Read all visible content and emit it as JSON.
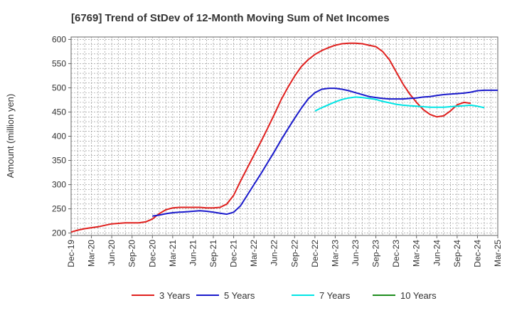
{
  "chart_data": {
    "type": "line",
    "title": "[6769]  Trend of StDev of 12-Month Moving Sum of Net Incomes",
    "ylabel": "Amount (million yen)",
    "xlabel": "",
    "ylim": [
      195,
      605
    ],
    "yticks": [
      200,
      250,
      300,
      350,
      400,
      450,
      500,
      550,
      600
    ],
    "xticks": [
      "Dec-19",
      "Mar-20",
      "Jun-20",
      "Sep-20",
      "Dec-20",
      "Mar-21",
      "Jun-21",
      "Sep-21",
      "Dec-21",
      "Mar-22",
      "Jun-22",
      "Sep-22",
      "Dec-22",
      "Mar-23",
      "Jun-23",
      "Sep-23",
      "Dec-23",
      "Mar-24",
      "Jun-24",
      "Sep-24",
      "Dec-24",
      "Mar-25"
    ],
    "grid": true,
    "legend_position": "bottom",
    "series": [
      {
        "name": "3 Years",
        "color": "#e0201e",
        "start_index": 0,
        "values": [
          202,
          206,
          209,
          211,
          213,
          216,
          219,
          220,
          221,
          221,
          221,
          223,
          229,
          240,
          248,
          252,
          253,
          253,
          253,
          253,
          252,
          252,
          253,
          260,
          278,
          307,
          334,
          361,
          388,
          416,
          445,
          475,
          501,
          524,
          544,
          558,
          569,
          577,
          583,
          588,
          591,
          592,
          592,
          591,
          588,
          585,
          575,
          558,
          533,
          508,
          487,
          470,
          455,
          445,
          440,
          442,
          452,
          465,
          470,
          468
        ]
      },
      {
        "name": "5 Years",
        "color": "#1a1acc",
        "start_index": 12,
        "values": [
          235,
          237,
          240,
          242,
          243,
          244,
          245,
          246,
          245,
          243,
          241,
          239,
          243,
          256,
          278,
          300,
          322,
          345,
          368,
          392,
          415,
          437,
          458,
          477,
          490,
          497,
          499,
          499,
          497,
          494,
          490,
          486,
          482,
          480,
          478,
          477,
          477,
          477,
          478,
          479,
          481,
          482,
          484,
          486,
          487,
          488,
          489,
          491,
          494,
          495,
          495,
          495
        ]
      },
      {
        "name": "7 Years",
        "color": "#00e5e5",
        "start_index": 36,
        "values": [
          452,
          459,
          465,
          471,
          476,
          479,
          481,
          480,
          478,
          476,
          472,
          469,
          466,
          464,
          463,
          462,
          461,
          460,
          460,
          460,
          461,
          462,
          463,
          464,
          462,
          459
        ]
      },
      {
        "name": "10 Years",
        "color": "#1e8c1e",
        "start_index": 0,
        "values": []
      }
    ]
  }
}
